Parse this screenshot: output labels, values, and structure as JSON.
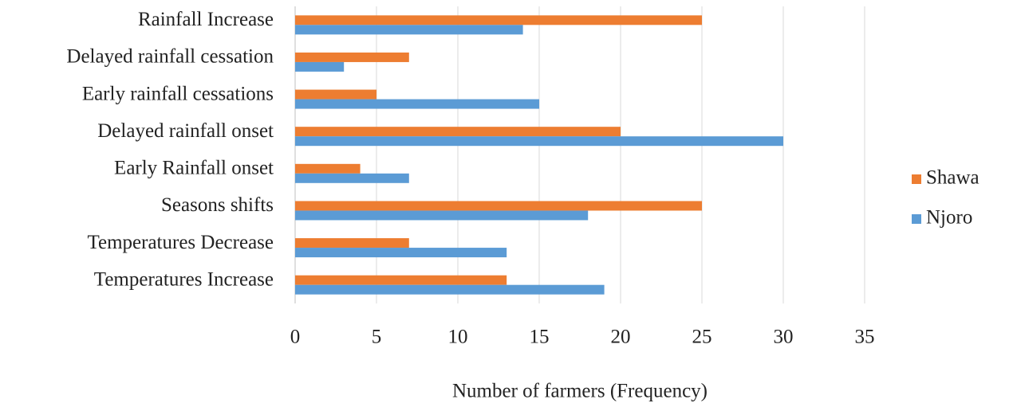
{
  "chart_data": {
    "type": "hbar",
    "x_label": "Number of farmers (Frequency)",
    "categories": [
      "Rainfall Increase",
      "Delayed rainfall cessation",
      "Early rainfall cessations",
      "Delayed rainfall onset",
      "Early Rainfall onset",
      "Seasons shifts",
      "Temperatures Decrease",
      "Temperatures Increase"
    ],
    "series": [
      {
        "name": "Shawa",
        "color": "#ED7D31",
        "values": [
          25,
          7,
          5,
          20,
          4,
          25,
          7,
          13
        ]
      },
      {
        "name": "Njoro",
        "color": "#5B9BD5",
        "values": [
          14,
          3,
          15,
          30,
          7,
          18,
          13,
          19
        ]
      }
    ],
    "xlim": [
      0,
      35
    ],
    "xticks": [
      0,
      5,
      10,
      15,
      20,
      25,
      30,
      35
    ],
    "grid": true,
    "legend": "right"
  }
}
